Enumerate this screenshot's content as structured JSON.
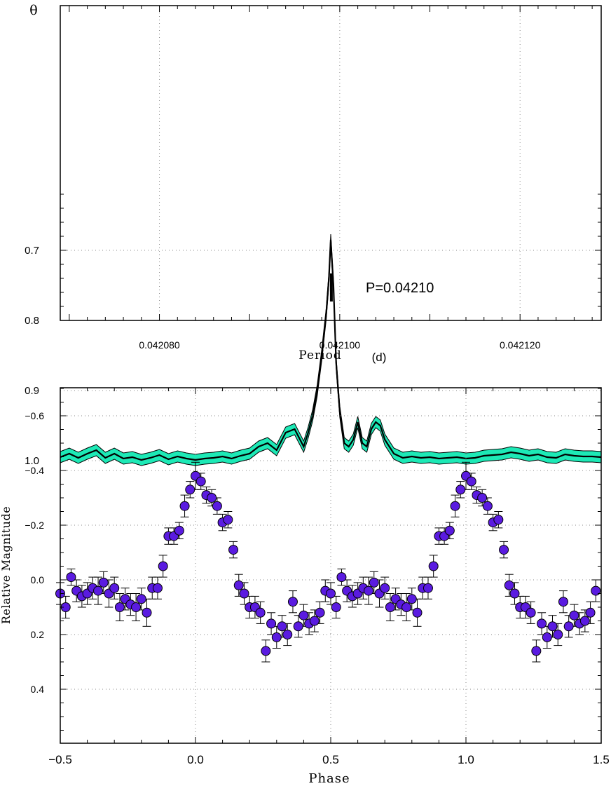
{
  "top": {
    "theta_label": "θ",
    "xlabel": "Period",
    "xunit": "(d)",
    "annotation": "P=0.04210",
    "x_tick_labels": [
      "0.042080",
      "0.042100",
      "0.042120"
    ],
    "y_tick_labels": [
      "0.7",
      "0.8",
      "0.9",
      "1.0"
    ]
  },
  "bottom": {
    "xlabel": "Phase",
    "ylabel": "Relative Magnitude",
    "x_tick_labels": [
      "−0.5",
      "0.0",
      "0.5",
      "1.0",
      "1.5"
    ],
    "y_tick_labels": [
      "−0.6",
      "−0.4",
      "−0.2",
      "0.0",
      "0.2",
      "0.4"
    ]
  },
  "colors": {
    "band": "#1de9b6",
    "curve": "#000000",
    "marker": "#5a1be0"
  },
  "chart_data": [
    {
      "type": "line",
      "title": "",
      "xlabel": "Period (d)",
      "ylabel": "θ",
      "xlim": [
        0.042069,
        0.042129
      ],
      "ylim": [
        0.6,
        1.05
      ],
      "grid": true,
      "period_marker": 0.04209907,
      "annotation": "P=0.04210",
      "series": [
        {
          "x": [
            0.042069,
            0.04207,
            0.042071,
            0.042072,
            0.042073,
            0.042074,
            0.042075,
            0.042076,
            0.042077,
            0.042078,
            0.042079,
            0.04208,
            0.042081,
            0.042082,
            0.042083,
            0.042084,
            0.042085,
            0.042086,
            0.042087,
            0.042088,
            0.042089,
            0.04209,
            0.042091,
            0.042092,
            0.042093,
            0.042094,
            0.042095,
            0.042096,
            0.0420965,
            0.042097,
            0.0420975,
            0.042098,
            0.0420985,
            0.0420988,
            0.042099,
            0.0420993,
            0.0420996,
            0.0421,
            0.0421005,
            0.042101,
            0.0421015,
            0.042102,
            0.0421025,
            0.042103,
            0.0421035,
            0.042104,
            0.0421045,
            0.042105,
            0.042106,
            0.042107,
            0.042108,
            0.042109,
            0.04211,
            0.042111,
            0.042112,
            0.042113,
            0.042114,
            0.042115,
            0.042116,
            0.042117,
            0.042118,
            0.042119,
            0.04212,
            0.042121,
            0.042122,
            0.042123,
            0.042124,
            0.042125,
            0.042126,
            0.042127,
            0.042128,
            0.042129
          ],
          "y": [
            0.995,
            0.99,
            0.996,
            0.99,
            0.985,
            0.996,
            0.99,
            0.997,
            0.995,
            0.999,
            0.996,
            0.992,
            0.998,
            0.994,
            0.997,
            0.999,
            0.997,
            0.996,
            0.994,
            0.997,
            0.993,
            0.99,
            0.98,
            0.975,
            0.985,
            0.96,
            0.955,
            0.98,
            0.96,
            0.935,
            0.9,
            0.85,
            0.79,
            0.74,
            0.685,
            0.75,
            0.86,
            0.93,
            0.975,
            0.98,
            0.97,
            0.945,
            0.975,
            0.98,
            0.955,
            0.945,
            0.95,
            0.97,
            0.99,
            0.996,
            0.994,
            0.996,
            0.995,
            0.997,
            0.996,
            0.995,
            0.997,
            0.996,
            0.993,
            0.992,
            0.991,
            0.988,
            0.99,
            0.993,
            0.991,
            0.995,
            0.996,
            0.991,
            0.993,
            0.994,
            0.994,
            0.995
          ],
          "band_half_width": 0.008
        }
      ]
    },
    {
      "type": "scatter",
      "title": "",
      "xlabel": "Phase",
      "ylabel": "Relative Magnitude",
      "xlim": [
        -0.5,
        1.5
      ],
      "ylim": [
        0.6,
        -0.7
      ],
      "grid": true,
      "y_inverted": true,
      "series": [
        {
          "phase": [
            -0.5,
            -0.48,
            -0.46,
            -0.44,
            -0.42,
            -0.4,
            -0.38,
            -0.36,
            -0.34,
            -0.32,
            -0.3,
            -0.28,
            -0.26,
            -0.24,
            -0.22,
            -0.2,
            -0.18,
            -0.16,
            -0.14,
            -0.12,
            -0.1,
            -0.08,
            -0.06,
            -0.04,
            -0.02,
            0.0,
            0.02,
            0.04,
            0.06,
            0.08,
            0.1,
            0.12,
            0.14,
            0.16,
            0.18,
            0.2,
            0.22,
            0.24,
            0.26,
            0.28,
            0.3,
            0.32,
            0.34,
            0.36,
            0.38,
            0.4,
            0.42,
            0.44,
            0.46,
            0.48
          ],
          "mag": [
            0.05,
            0.1,
            -0.01,
            0.04,
            0.06,
            0.05,
            0.03,
            0.04,
            0.01,
            0.05,
            0.03,
            0.1,
            0.07,
            0.09,
            0.1,
            0.07,
            0.12,
            0.03,
            0.03,
            -0.05,
            -0.16,
            -0.16,
            -0.18,
            -0.27,
            -0.33,
            -0.38,
            -0.36,
            -0.31,
            -0.3,
            -0.27,
            -0.21,
            -0.22,
            -0.11,
            0.02,
            0.05,
            0.1,
            0.1,
            0.12,
            0.26,
            0.16,
            0.21,
            0.17,
            0.2,
            0.08,
            0.17,
            0.13,
            0.16,
            0.15,
            0.12,
            0.04
          ],
          "err": [
            0.04,
            0.04,
            0.03,
            0.04,
            0.04,
            0.04,
            0.04,
            0.05,
            0.04,
            0.05,
            0.04,
            0.05,
            0.04,
            0.04,
            0.05,
            0.04,
            0.05,
            0.04,
            0.04,
            0.04,
            0.03,
            0.03,
            0.03,
            0.04,
            0.03,
            0.05,
            0.03,
            0.03,
            0.03,
            0.03,
            0.03,
            0.03,
            0.03,
            0.04,
            0.04,
            0.04,
            0.04,
            0.04,
            0.04,
            0.04,
            0.04,
            0.04,
            0.04,
            0.04,
            0.04,
            0.04,
            0.04,
            0.04,
            0.04,
            0.04
          ],
          "repeated_with_offset": 1.0
        }
      ]
    }
  ]
}
